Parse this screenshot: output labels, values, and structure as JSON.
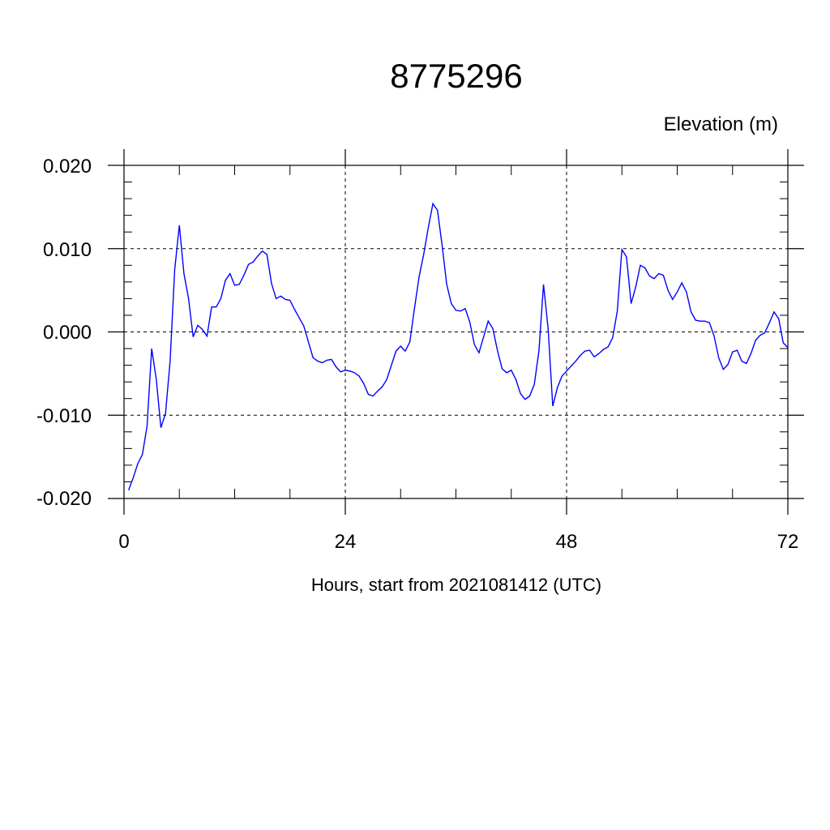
{
  "chart_data": {
    "type": "line",
    "title": "8775296",
    "ylabel": "Elevation (m)",
    "xlabel": "Hours, start from 2021081412 (UTC)",
    "xlim": [
      0,
      72
    ],
    "ylim": [
      -0.02,
      0.02
    ],
    "x_ticks": [
      "0",
      "24",
      "48",
      "72"
    ],
    "y_ticks": [
      "0.020",
      "0.010",
      "0.000",
      "-0.010",
      "-0.020"
    ],
    "grid": true,
    "line_color": "#0000ff",
    "series": [
      {
        "x": [
          0.5,
          1.0,
          1.5,
          2.0,
          2.5,
          3.0,
          3.5,
          4.0,
          4.5,
          5.0,
          5.5,
          6.0,
          6.5,
          7.0,
          7.5,
          8.0,
          8.5,
          9.0,
          9.5,
          10.0,
          10.5,
          11.0,
          11.5,
          12.0,
          12.5,
          13.0,
          13.5,
          14.0,
          14.5,
          15.0,
          15.5,
          16.0,
          16.5,
          17.0,
          17.5,
          18.0,
          18.5,
          19.0,
          19.5,
          20.0,
          20.5,
          21.0,
          21.5,
          22.0,
          22.5,
          23.0,
          23.5,
          24.0,
          24.5,
          25.0,
          25.5,
          26.0,
          26.5,
          27.0,
          27.5,
          28.0,
          28.5,
          29.0,
          29.5,
          30.0,
          30.5,
          31.0,
          31.5,
          32.0,
          32.5,
          33.0,
          33.5,
          34.0,
          34.5,
          35.0,
          35.5,
          36.0,
          36.5,
          37.0,
          37.5,
          38.0,
          38.5,
          39.0,
          39.5,
          40.0,
          40.5,
          41.0,
          41.5,
          42.0,
          42.5,
          43.0,
          43.5,
          44.0,
          44.5,
          45.0,
          45.5,
          46.0,
          46.5,
          47.0,
          47.5,
          48.0,
          48.5,
          49.0,
          49.5,
          50.0,
          50.5,
          51.0,
          51.5,
          52.0,
          52.5,
          53.0,
          53.5,
          54.0,
          54.5,
          55.0,
          55.5,
          56.0,
          56.5,
          57.0,
          57.5,
          58.0,
          58.5,
          59.0,
          59.5,
          60.0,
          60.5,
          61.0,
          61.5,
          62.0,
          62.5,
          63.0,
          63.5,
          64.0,
          64.5,
          65.0,
          65.5,
          66.0,
          66.5,
          67.0,
          67.5,
          68.0,
          68.5,
          69.0,
          69.5,
          70.0,
          70.5,
          71.0,
          71.5,
          72.0
        ],
        "y": [
          -0.019,
          -0.0175,
          -0.0158,
          -0.0147,
          -0.0113,
          -0.002,
          -0.0057,
          -0.0115,
          -0.0098,
          -0.0035,
          0.0075,
          0.0128,
          0.007,
          0.004,
          -0.0006,
          0.0008,
          0.0003,
          -0.0005,
          0.003,
          0.003,
          0.004,
          0.0062,
          0.007,
          0.0056,
          0.0057,
          0.0068,
          0.0081,
          0.0084,
          0.0091,
          0.0097,
          0.0093,
          0.0058,
          0.004,
          0.0043,
          0.0039,
          0.0038,
          0.0027,
          0.0017,
          0.0007,
          -0.0012,
          -0.0031,
          -0.0035,
          -0.0037,
          -0.0034,
          -0.0033,
          -0.0042,
          -0.0048,
          -0.0046,
          -0.0047,
          -0.0049,
          -0.0053,
          -0.0062,
          -0.0075,
          -0.0077,
          -0.0071,
          -0.0066,
          -0.0057,
          -0.004,
          -0.0023,
          -0.0017,
          -0.0023,
          -0.0012,
          0.0028,
          0.0066,
          0.0093,
          0.0125,
          0.0154,
          0.0146,
          0.0104,
          0.0057,
          0.0034,
          0.0026,
          0.0025,
          0.0028,
          0.0012,
          -0.0015,
          -0.0025,
          -0.0006,
          0.0013,
          0.0004,
          -0.0022,
          -0.0044,
          -0.0049,
          -0.0046,
          -0.0057,
          -0.0074,
          -0.0081,
          -0.0077,
          -0.0063,
          -0.0023,
          0.0057,
          0.0004,
          -0.0089,
          -0.0067,
          -0.0053,
          -0.0047,
          -0.0041,
          -0.0035,
          -0.0028,
          -0.0023,
          -0.0022,
          -0.003,
          -0.0026,
          -0.0021,
          -0.0018,
          -0.0007,
          0.0025,
          0.0099,
          0.009,
          0.0034,
          0.0054,
          0.008,
          0.0077,
          0.0067,
          0.0064,
          0.007,
          0.0068,
          0.005,
          0.0039,
          0.0048,
          0.0059,
          0.0048,
          0.0024,
          0.0014,
          0.0013,
          0.0013,
          0.0011,
          -0.0005,
          -0.0031,
          -0.0045,
          -0.0039,
          -0.0024,
          -0.0022,
          -0.0035,
          -0.0038,
          -0.0026,
          -0.001,
          -0.0004,
          -0.0001,
          0.0011,
          0.0024,
          0.0016,
          -0.0013,
          -0.0019
        ]
      }
    ]
  }
}
